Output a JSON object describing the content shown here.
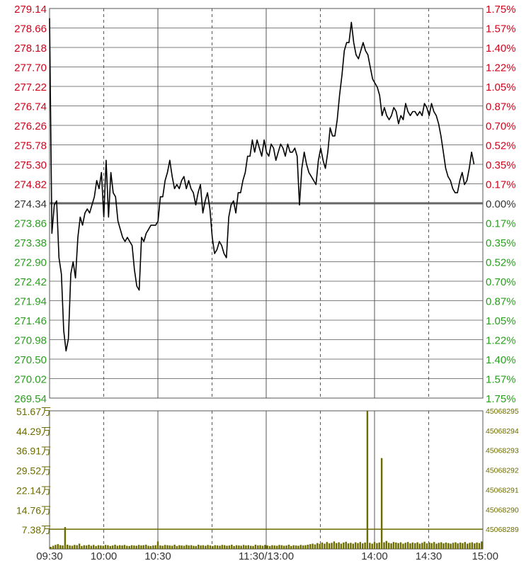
{
  "chart_data": [
    {
      "type": "line",
      "title": "",
      "xlabel": "",
      "ylabel": "",
      "base_price": 274.34,
      "ylim": [
        269.54,
        279.14
      ],
      "price_ticks": [
        "279.14",
        "278.66",
        "278.18",
        "277.70",
        "277.22",
        "276.74",
        "276.26",
        "275.78",
        "275.30",
        "274.82",
        "274.34",
        "273.86",
        "273.38",
        "272.90",
        "272.42",
        "271.94",
        "271.46",
        "270.98",
        "270.50",
        "270.02",
        "269.54"
      ],
      "pct_ticks": [
        "1.75%",
        "1.57%",
        "1.40%",
        "1.22%",
        "1.05%",
        "0.87%",
        "0.70%",
        "0.52%",
        "0.35%",
        "0.17%",
        "0.00%",
        "0.17%",
        "0.35%",
        "0.52%",
        "0.70%",
        "0.87%",
        "1.05%",
        "1.22%",
        "1.40%",
        "1.57%",
        "1.75%"
      ],
      "x_ticks": [
        "09:30",
        "10:00",
        "10:30",
        "11:30/13:00",
        "14:00",
        "14:30",
        "15:00"
      ],
      "grid": true,
      "series": [
        {
          "values": [
            278.9,
            273.6,
            274.3,
            274.4,
            273.0,
            272.6,
            271.2,
            270.7,
            271.0,
            272.6,
            272.9,
            272.5,
            273.5,
            274.0,
            273.8,
            274.1,
            274.2,
            274.1,
            274.3,
            274.5,
            274.9,
            274.7,
            275.1,
            274.0,
            275.4,
            274.0,
            275.1,
            274.6,
            274.5,
            273.9,
            273.7,
            273.5,
            273.4,
            273.5,
            273.4,
            273.3,
            272.7,
            272.3,
            272.2,
            273.5,
            273.4,
            273.6,
            273.7,
            273.8,
            273.8,
            273.8,
            273.9,
            274.5,
            274.5,
            274.9,
            275.1,
            275.4,
            275.0,
            274.7,
            274.8,
            274.7,
            274.9,
            275.0,
            274.7,
            274.9,
            274.7,
            274.6,
            274.3,
            274.6,
            274.8,
            274.1,
            274.4,
            274.6,
            274.2,
            273.5,
            273.1,
            273.2,
            273.4,
            273.3,
            273.1,
            273.0,
            274.0,
            274.3,
            274.4,
            274.1,
            274.6,
            274.6,
            274.9,
            275.1,
            275.5,
            275.5,
            275.9,
            275.6,
            275.9,
            275.7,
            275.5,
            275.9,
            275.6,
            275.5,
            275.8,
            275.7,
            275.4,
            275.6,
            275.8,
            275.7,
            275.5,
            275.8,
            275.6,
            275.6,
            275.7,
            275.5,
            274.3,
            275.2,
            275.6,
            275.3,
            275.1,
            275.0,
            274.9,
            274.8,
            275.4,
            275.7,
            275.4,
            275.2,
            275.6,
            276.2,
            276.0,
            276.0,
            276.4,
            277.0,
            277.5,
            278.1,
            278.3,
            278.3,
            278.8,
            278.3,
            278.0,
            277.9,
            278.1,
            278.3,
            278.1,
            278.0,
            277.7,
            277.4,
            277.3,
            277.2,
            277.0,
            276.5,
            276.7,
            276.5,
            276.4,
            276.5,
            276.7,
            276.6,
            276.3,
            276.5,
            276.4,
            276.8,
            276.6,
            276.5,
            276.6,
            276.6,
            276.5,
            276.6,
            276.5,
            276.8,
            276.7,
            276.5,
            276.8,
            276.6,
            276.5,
            276.3,
            276.0,
            275.6,
            275.2,
            275.0,
            274.9,
            274.7,
            274.6,
            274.6,
            274.9,
            275.1,
            274.8,
            274.9,
            275.2,
            275.6,
            275.3
          ]
        }
      ]
    },
    {
      "type": "bar",
      "title": "",
      "xlabel": "",
      "ylabel": "",
      "ylim": [
        0,
        51.67
      ],
      "unit": "万",
      "vol_ticks": [
        "51.67万",
        "44.29万",
        "36.91万",
        "29.52万",
        "22.14万",
        "14.76万",
        "7.38万"
      ],
      "right_ticks": [
        "45068295",
        "45068294",
        "45068293",
        "45068292",
        "45068291",
        "45068290",
        "45068289"
      ],
      "reference_line": 7.38,
      "values": [
        0.8,
        1.2,
        1.5,
        1.8,
        1.4,
        1.3,
        8.2,
        1.6,
        1.3,
        1.2,
        1.5,
        1.4,
        2.0,
        1.1,
        1.4,
        1.3,
        1.6,
        1.2,
        1.5,
        1.1,
        1.4,
        1.3,
        1.2,
        1.5,
        1.4,
        1.1,
        1.3,
        1.6,
        1.2,
        1.4,
        1.3,
        1.5,
        1.2,
        1.1,
        1.4,
        1.3,
        1.2,
        1.5,
        1.3,
        1.4,
        1.6,
        1.2,
        1.1,
        1.3,
        1.4,
        2.8,
        1.3,
        1.2,
        1.5,
        1.4,
        1.3,
        1.2,
        1.6,
        1.1,
        1.4,
        1.3,
        1.2,
        1.5,
        1.3,
        1.4,
        1.2,
        1.1,
        1.6,
        1.3,
        1.4,
        1.2,
        1.5,
        1.3,
        1.1,
        1.4,
        1.3,
        1.2,
        1.5,
        1.4,
        1.2,
        1.3,
        1.6,
        1.1,
        1.4,
        1.3,
        1.2,
        1.5,
        1.3,
        1.4,
        1.2,
        1.1,
        1.6,
        1.3,
        1.4,
        1.2,
        1.5,
        1.3,
        1.1,
        1.4,
        1.3,
        1.2,
        1.5,
        1.4,
        1.2,
        1.3,
        1.6,
        1.1,
        1.4,
        1.3,
        1.2,
        1.5,
        1.3,
        1.4,
        1.6,
        1.8,
        2.0,
        1.7,
        2.2,
        1.9,
        2.4,
        2.0,
        2.6,
        2.1,
        2.3,
        2.8,
        2.2,
        2.5,
        2.0,
        2.4,
        2.7,
        2.1,
        2.3,
        2.0,
        2.5,
        2.2,
        2.6,
        2.1,
        2.4,
        51.6,
        2.3,
        2.0,
        2.6,
        2.2,
        2.4,
        34.0,
        2.5,
        3.0,
        2.3,
        2.1,
        2.6,
        2.4,
        2.2,
        2.5,
        2.0,
        2.3,
        2.6,
        2.1,
        2.4,
        2.2,
        2.5,
        2.0,
        2.3,
        2.7,
        2.1,
        2.4,
        2.2,
        2.6,
        2.0,
        2.3,
        2.5,
        2.1,
        2.4,
        2.2,
        2.0,
        2.3,
        2.5,
        2.1,
        2.4,
        2.2,
        2.6,
        2.0,
        2.3,
        2.5,
        2.1,
        2.4,
        2.2,
        2.8
      ]
    }
  ],
  "colors": {
    "line": "#000000",
    "up": "#d0021b",
    "down": "#2a9d1f",
    "volume": "#6b6b00",
    "grid": "#555555",
    "base_line": "#666666"
  }
}
